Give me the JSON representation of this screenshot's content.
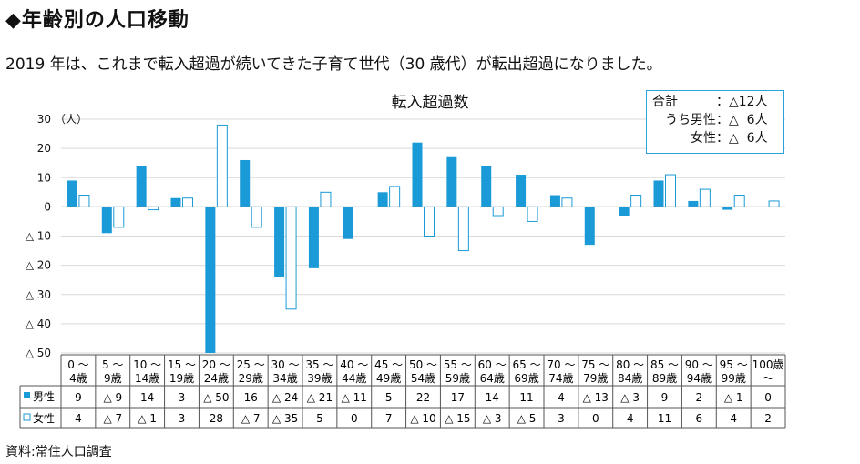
{
  "heading": "◆年齢別の人口移動",
  "subtitle": "2019 年は、これまで転入超過が続いてきた子育て世代（30 歳代）が転出超過になりました。",
  "summary": {
    "rows": [
      {
        "label": "合計　　",
        "value": "：△12人"
      },
      {
        "label": "うち男性",
        "value": "：△  6人"
      },
      {
        "label": "女性",
        "value": "：△  6人"
      }
    ]
  },
  "source": "資料:常住人口調査",
  "colors": {
    "male": "#1a9ad6",
    "female_stroke": "#1a9ad6",
    "grid": "#d9d9d9",
    "table_border": "#2aa3dc"
  },
  "chart_data": {
    "type": "bar",
    "title": "転入超過数",
    "ylabel": "（人）",
    "ylim": [
      -50,
      30
    ],
    "yticks": [
      {
        "v": 30,
        "t": "30"
      },
      {
        "v": 20,
        "t": "20"
      },
      {
        "v": 10,
        "t": "10"
      },
      {
        "v": 0,
        "t": "0"
      },
      {
        "v": -10,
        "t": "△ 10"
      },
      {
        "v": -20,
        "t": "△ 20"
      },
      {
        "v": -30,
        "t": "△ 30"
      },
      {
        "v": -40,
        "t": "△ 40"
      },
      {
        "v": -50,
        "t": "△ 50"
      }
    ],
    "categories": [
      [
        "0 ～",
        "4歳"
      ],
      [
        "5 ～",
        "9歳"
      ],
      [
        "10 ～",
        "14歳"
      ],
      [
        "15 ～",
        "19歳"
      ],
      [
        "20 ～",
        "24歳"
      ],
      [
        "25 ～",
        "29歳"
      ],
      [
        "30 ～",
        "34歳"
      ],
      [
        "35 ～",
        "39歳"
      ],
      [
        "40 ～",
        "44歳"
      ],
      [
        "45 ～",
        "49歳"
      ],
      [
        "50 ～",
        "54歳"
      ],
      [
        "55 ～",
        "59歳"
      ],
      [
        "60 ～",
        "64歳"
      ],
      [
        "65 ～",
        "69歳"
      ],
      [
        "70 ～",
        "74歳"
      ],
      [
        "75 ～",
        "79歳"
      ],
      [
        "80 ～",
        "84歳"
      ],
      [
        "85 ～",
        "89歳"
      ],
      [
        "90 ～",
        "94歳"
      ],
      [
        "95 ～",
        "99歳"
      ],
      [
        "100歳",
        "～"
      ]
    ],
    "series": [
      {
        "name": "男性",
        "values": [
          9,
          -9,
          14,
          3,
          -50,
          16,
          -24,
          -21,
          -11,
          5,
          22,
          17,
          14,
          11,
          4,
          -13,
          -3,
          9,
          2,
          -1,
          0
        ],
        "labels": [
          "9",
          "△ 9",
          "14",
          "3",
          "△ 50",
          "16",
          "△ 24",
          "△ 21",
          "△ 11",
          "5",
          "22",
          "17",
          "14",
          "11",
          "4",
          "△ 13",
          "△ 3",
          "9",
          "2",
          "△ 1",
          "0"
        ]
      },
      {
        "name": "女性",
        "values": [
          4,
          -7,
          -1,
          3,
          28,
          -7,
          -35,
          5,
          0,
          7,
          -10,
          -15,
          -3,
          -5,
          3,
          0,
          4,
          11,
          6,
          4,
          2
        ],
        "labels": [
          "4",
          "△ 7",
          "△ 1",
          "3",
          "28",
          "△ 7",
          "△ 35",
          "5",
          "0",
          "7",
          "△ 10",
          "△ 15",
          "△ 3",
          "△ 5",
          "3",
          "0",
          "4",
          "11",
          "6",
          "4",
          "2"
        ]
      }
    ]
  }
}
